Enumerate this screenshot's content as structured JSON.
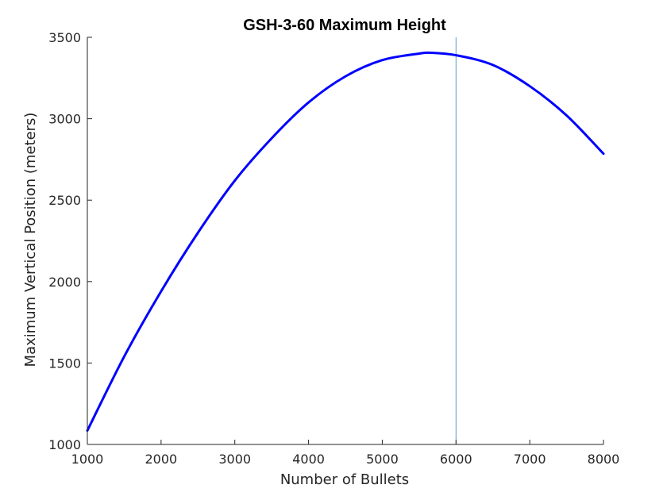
{
  "chart_data": {
    "type": "line",
    "title": "GSH-3-60 Maximum Height",
    "xlabel": "Number of Bullets",
    "ylabel": "Maximum Vertical Position (meters)",
    "xlim": [
      1000,
      8000
    ],
    "ylim": [
      1000,
      3500
    ],
    "xticks": [
      "1000",
      "2000",
      "3000",
      "4000",
      "5000",
      "6000",
      "7000",
      "8000"
    ],
    "yticks": [
      "1000",
      "1500",
      "2000",
      "2500",
      "3000",
      "3500"
    ],
    "grid": false,
    "series": [
      {
        "color": "#0000ff",
        "x": [
          1000,
          1500,
          2000,
          2500,
          3000,
          3500,
          4000,
          4500,
          5000,
          5500,
          5660,
          6000,
          6500,
          7000,
          7500,
          8000
        ],
        "y": [
          1085,
          1540,
          1940,
          2300,
          2620,
          2880,
          3100,
          3260,
          3360,
          3400,
          3405,
          3390,
          3330,
          3200,
          3020,
          2785
        ]
      }
    ],
    "vertical_lines": [
      {
        "x": 6000,
        "color": "#5b9bd5"
      }
    ]
  }
}
